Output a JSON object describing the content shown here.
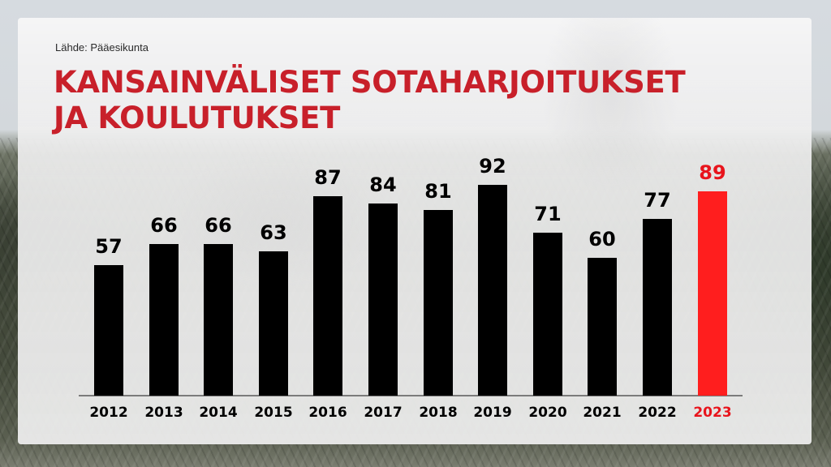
{
  "source": "Lähde: Pääesikunta",
  "title": {
    "line1": "KANSAINVÄLISET SOTAHARJOITUKSET",
    "line2": "JA KOULUTUKSET",
    "color": "#c8202a"
  },
  "colors": {
    "bar_default": "#000000",
    "bar_highlight": "#ff1e1e",
    "label_highlight": "#e8141c",
    "baseline": "#7b7b7b"
  },
  "chart_data": {
    "type": "bar",
    "title": "KANSAINVÄLISET SOTAHARJOITUKSET JA KOULUTUKSET",
    "subtitle": "Lähde: Pääesikunta",
    "categories": [
      "2012",
      "2013",
      "2014",
      "2015",
      "2016",
      "2017",
      "2018",
      "2019",
      "2020",
      "2021",
      "2022",
      "2023"
    ],
    "values": [
      57,
      66,
      66,
      63,
      87,
      84,
      81,
      92,
      71,
      60,
      77,
      89
    ],
    "highlight": "2023",
    "xlabel": "",
    "ylabel": "",
    "ylim": [
      0,
      92
    ],
    "grid": false,
    "legend": "none",
    "data_labels": true
  }
}
